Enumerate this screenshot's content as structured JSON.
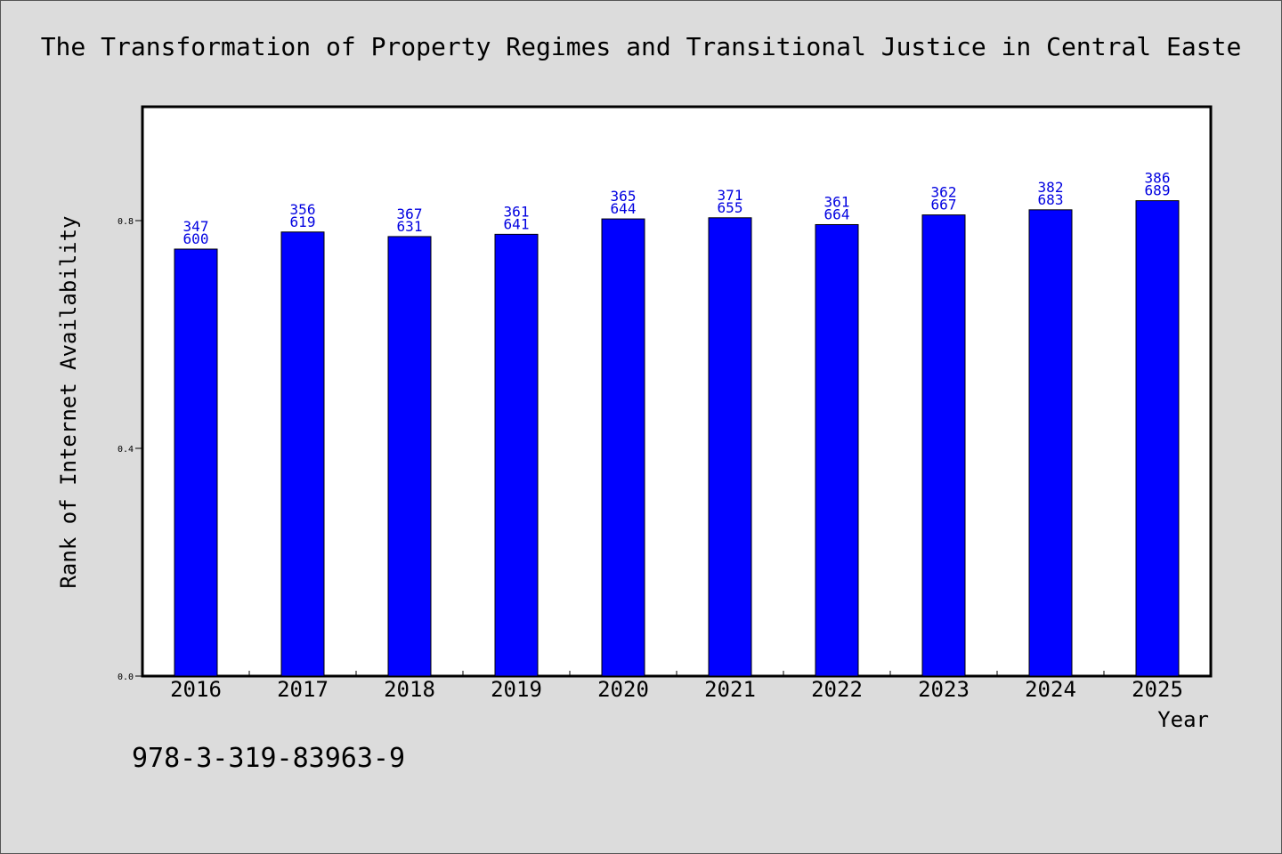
{
  "chart_data": {
    "type": "bar",
    "title": "The Transformation of Property Regimes and Transitional Justice in Central Easte",
    "xlabel": "Year",
    "ylabel": "Rank of Internet Availability",
    "categories": [
      "2016",
      "2017",
      "2018",
      "2019",
      "2020",
      "2021",
      "2022",
      "2023",
      "2024",
      "2025"
    ],
    "values": [
      0.75,
      0.78,
      0.772,
      0.776,
      0.803,
      0.805,
      0.793,
      0.81,
      0.819,
      0.835
    ],
    "data_labels_top": [
      "347",
      "356",
      "367",
      "361",
      "365",
      "371",
      "361",
      "362",
      "382",
      "386"
    ],
    "data_labels_bottom": [
      "600",
      "619",
      "631",
      "641",
      "644",
      "655",
      "664",
      "667",
      "683",
      "689"
    ],
    "ylim": [
      0,
      1.0
    ],
    "yticks": [
      0.0,
      0.4,
      0.8
    ],
    "ytick_labels": [
      "0.0",
      "0.4",
      "0.8"
    ],
    "bar_color": "#0000ff",
    "label_color": "#0000e0",
    "grid": false
  },
  "footer": {
    "isbn": "978-3-319-83963-9"
  }
}
